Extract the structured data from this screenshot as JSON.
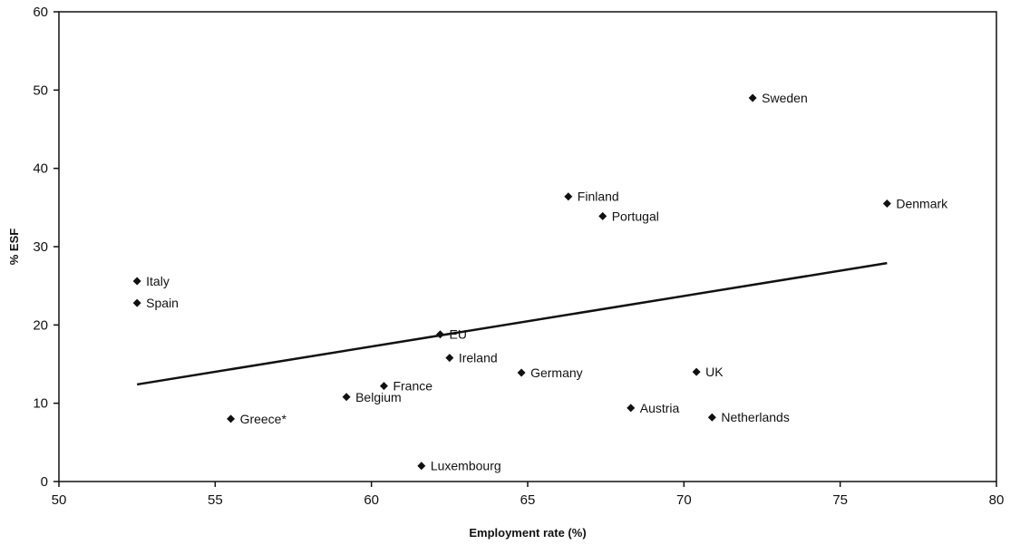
{
  "chart_data": {
    "type": "scatter",
    "title": "",
    "xlabel": "Employment rate (%)",
    "ylabel": "% ESF",
    "xlim": [
      50,
      80
    ],
    "ylim": [
      0,
      60
    ],
    "x_ticks": [
      "50",
      "55",
      "60",
      "65",
      "70",
      "75",
      "80"
    ],
    "y_ticks": [
      "0",
      "10",
      "20",
      "30",
      "40",
      "50",
      "60"
    ],
    "grid": false,
    "marker": "diamond",
    "color": "#111111",
    "points": [
      {
        "label": "Italy",
        "x": 52.5,
        "y": 25.6
      },
      {
        "label": "Spain",
        "x": 52.5,
        "y": 22.8
      },
      {
        "label": "Greece*",
        "x": 55.5,
        "y": 8.0
      },
      {
        "label": "Belgium",
        "x": 59.2,
        "y": 10.8
      },
      {
        "label": "France",
        "x": 60.4,
        "y": 12.2
      },
      {
        "label": "Luxembourg",
        "x": 61.6,
        "y": 2.0
      },
      {
        "label": "EU",
        "x": 62.2,
        "y": 18.8
      },
      {
        "label": "Ireland",
        "x": 62.5,
        "y": 15.8
      },
      {
        "label": "Germany",
        "x": 64.8,
        "y": 13.9
      },
      {
        "label": "Finland",
        "x": 66.3,
        "y": 36.4
      },
      {
        "label": "Portugal",
        "x": 67.4,
        "y": 33.9
      },
      {
        "label": "Austria",
        "x": 68.3,
        "y": 9.4
      },
      {
        "label": "UK",
        "x": 70.4,
        "y": 14.0
      },
      {
        "label": "Netherlands",
        "x": 70.9,
        "y": 8.2
      },
      {
        "label": "Sweden",
        "x": 72.2,
        "y": 49.0
      },
      {
        "label": "Denmark",
        "x": 76.5,
        "y": 35.5
      }
    ],
    "trendline": {
      "x": [
        52.5,
        76.5
      ],
      "y": [
        12.4,
        27.9
      ]
    }
  }
}
